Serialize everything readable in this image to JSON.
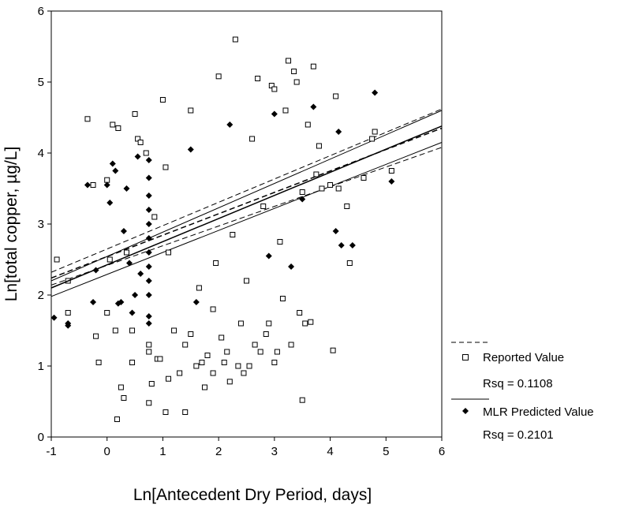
{
  "chart_data": {
    "type": "scatter",
    "xlabel": "Ln[Antecedent Dry Period, days]",
    "ylabel": "Ln[total copper, µg/L]",
    "xlim": [
      -1,
      6
    ],
    "ylim": [
      0,
      6
    ],
    "x_ticks": [
      "-1",
      "0",
      "1",
      "2",
      "3",
      "4",
      "5",
      "6"
    ],
    "y_ticks": [
      "0",
      "1",
      "2",
      "3",
      "4",
      "5",
      "6"
    ],
    "grid": false,
    "legend_position": "right",
    "series": [
      {
        "name": "Reported Value",
        "marker": "open-square",
        "rsq_label": "Rsq = 0.1108",
        "fit_line_style": "dashed",
        "fit": {
          "x": [
            -1,
            6
          ],
          "y": [
            2.24,
            4.35
          ]
        },
        "ci": {
          "lower": {
            "x": [
              -1,
              6
            ],
            "y": [
              2.14,
              4.08
            ]
          },
          "upper": {
            "x": [
              -1,
              6
            ],
            "y": [
              2.32,
              4.62
            ]
          }
        },
        "points": [
          [
            -0.9,
            2.5
          ],
          [
            -0.7,
            2.2
          ],
          [
            -0.7,
            1.75
          ],
          [
            -0.35,
            4.48
          ],
          [
            -0.25,
            3.55
          ],
          [
            -0.2,
            1.42
          ],
          [
            -0.15,
            1.05
          ],
          [
            0.0,
            1.75
          ],
          [
            0.0,
            3.62
          ],
          [
            0.05,
            2.5
          ],
          [
            0.1,
            4.4
          ],
          [
            0.15,
            1.5
          ],
          [
            0.18,
            0.25
          ],
          [
            0.2,
            4.35
          ],
          [
            0.25,
            0.7
          ],
          [
            0.3,
            0.55
          ],
          [
            0.35,
            2.6
          ],
          [
            0.45,
            1.5
          ],
          [
            0.45,
            1.05
          ],
          [
            0.5,
            4.55
          ],
          [
            0.55,
            4.2
          ],
          [
            0.6,
            4.15
          ],
          [
            0.7,
            4.0
          ],
          [
            0.75,
            1.3
          ],
          [
            0.75,
            1.2
          ],
          [
            0.75,
            0.48
          ],
          [
            0.8,
            0.75
          ],
          [
            0.85,
            3.1
          ],
          [
            0.9,
            1.1
          ],
          [
            0.95,
            1.1
          ],
          [
            1.05,
            0.35
          ],
          [
            1.0,
            4.75
          ],
          [
            1.05,
            3.8
          ],
          [
            1.1,
            2.6
          ],
          [
            1.1,
            0.82
          ],
          [
            1.2,
            1.5
          ],
          [
            1.3,
            0.9
          ],
          [
            1.4,
            0.35
          ],
          [
            1.4,
            1.3
          ],
          [
            1.5,
            4.6
          ],
          [
            1.5,
            1.45
          ],
          [
            1.6,
            1.0
          ],
          [
            1.65,
            2.1
          ],
          [
            1.7,
            1.05
          ],
          [
            1.75,
            0.7
          ],
          [
            1.8,
            1.15
          ],
          [
            1.9,
            0.9
          ],
          [
            1.9,
            1.8
          ],
          [
            1.95,
            2.45
          ],
          [
            2.0,
            5.08
          ],
          [
            2.05,
            1.4
          ],
          [
            2.1,
            1.05
          ],
          [
            2.15,
            1.2
          ],
          [
            2.2,
            0.78
          ],
          [
            2.25,
            2.85
          ],
          [
            2.3,
            5.6
          ],
          [
            2.35,
            1.0
          ],
          [
            2.4,
            1.6
          ],
          [
            2.45,
            0.9
          ],
          [
            2.5,
            2.2
          ],
          [
            2.55,
            1.0
          ],
          [
            2.6,
            4.2
          ],
          [
            2.65,
            1.3
          ],
          [
            2.7,
            5.05
          ],
          [
            2.75,
            1.2
          ],
          [
            2.8,
            3.25
          ],
          [
            2.85,
            1.45
          ],
          [
            2.9,
            1.6
          ],
          [
            2.95,
            4.95
          ],
          [
            3.0,
            4.9
          ],
          [
            3.0,
            1.05
          ],
          [
            3.05,
            1.2
          ],
          [
            3.1,
            2.75
          ],
          [
            3.15,
            1.95
          ],
          [
            3.2,
            4.6
          ],
          [
            3.25,
            5.3
          ],
          [
            3.3,
            1.3
          ],
          [
            3.35,
            5.15
          ],
          [
            3.4,
            5.0
          ],
          [
            3.45,
            1.75
          ],
          [
            3.5,
            0.52
          ],
          [
            3.5,
            3.45
          ],
          [
            3.55,
            1.6
          ],
          [
            3.6,
            4.4
          ],
          [
            3.65,
            1.62
          ],
          [
            3.7,
            5.22
          ],
          [
            3.75,
            3.7
          ],
          [
            3.8,
            4.1
          ],
          [
            3.85,
            3.5
          ],
          [
            4.0,
            3.55
          ],
          [
            4.05,
            1.22
          ],
          [
            4.1,
            4.8
          ],
          [
            4.15,
            3.5
          ],
          [
            4.3,
            3.25
          ],
          [
            4.35,
            2.45
          ],
          [
            4.6,
            3.65
          ],
          [
            4.75,
            4.2
          ],
          [
            4.8,
            4.3
          ],
          [
            5.1,
            3.75
          ]
        ]
      },
      {
        "name": "MLR Predicted Value",
        "marker": "filled-diamond",
        "rsq_label": "Rsq = 0.2101",
        "fit_line_style": "solid",
        "fit": {
          "x": [
            -1,
            6
          ],
          "y": [
            2.1,
            4.38
          ]
        },
        "ci": {
          "lower": {
            "x": [
              -1,
              6
            ],
            "y": [
              1.98,
              4.15
            ]
          },
          "upper": {
            "x": [
              -1,
              6
            ],
            "y": [
              2.2,
              4.6
            ]
          }
        },
        "points": [
          [
            -0.95,
            1.68
          ],
          [
            -0.7,
            1.57
          ],
          [
            -0.7,
            1.6
          ],
          [
            -0.35,
            3.55
          ],
          [
            -0.25,
            1.9
          ],
          [
            -0.2,
            2.35
          ],
          [
            0.0,
            3.55
          ],
          [
            0.05,
            3.3
          ],
          [
            0.1,
            3.85
          ],
          [
            0.15,
            3.75
          ],
          [
            0.2,
            1.88
          ],
          [
            0.25,
            1.9
          ],
          [
            0.3,
            2.9
          ],
          [
            0.35,
            3.5
          ],
          [
            0.4,
            2.45
          ],
          [
            0.45,
            1.75
          ],
          [
            0.5,
            2.0
          ],
          [
            0.55,
            3.95
          ],
          [
            0.6,
            2.3
          ],
          [
            1.5,
            4.05
          ],
          [
            1.6,
            1.9
          ],
          [
            2.2,
            4.4
          ],
          [
            2.9,
            2.55
          ],
          [
            3.0,
            4.55
          ],
          [
            3.3,
            2.4
          ],
          [
            3.5,
            3.35
          ],
          [
            3.7,
            4.65
          ],
          [
            4.15,
            4.3
          ],
          [
            4.2,
            2.7
          ],
          [
            4.4,
            2.7
          ],
          [
            4.8,
            4.85
          ],
          [
            5.1,
            3.6
          ],
          [
            4.1,
            2.9
          ],
          [
            0.75,
            1.6
          ],
          [
            0.75,
            1.7
          ],
          [
            0.75,
            2.0
          ],
          [
            0.75,
            2.2
          ],
          [
            0.75,
            2.4
          ],
          [
            0.75,
            2.6
          ],
          [
            0.75,
            2.8
          ],
          [
            0.75,
            3.0
          ],
          [
            0.75,
            3.2
          ],
          [
            0.75,
            3.4
          ],
          [
            0.75,
            3.65
          ],
          [
            0.75,
            3.9
          ]
        ]
      }
    ]
  },
  "legend": {
    "items": [
      {
        "label": "Reported Value",
        "rsq": "Rsq = 0.1108"
      },
      {
        "label": "MLR Predicted Value",
        "rsq": "Rsq = 0.2101"
      }
    ]
  }
}
